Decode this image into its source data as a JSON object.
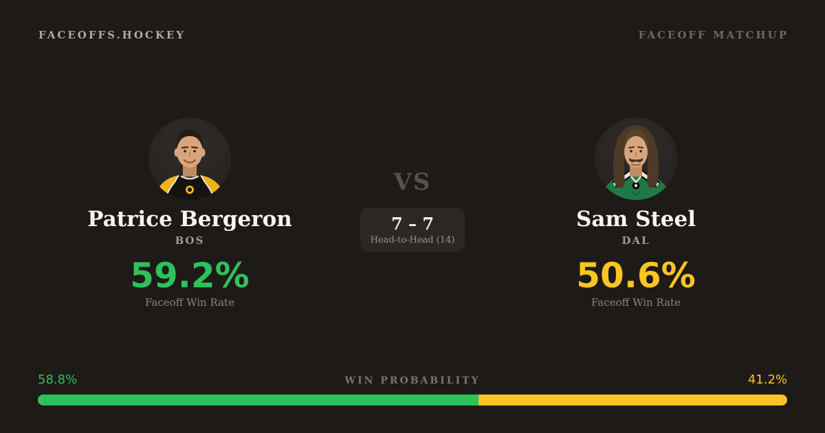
{
  "header": {
    "brand": "FACEOFFS.HOCKEY",
    "page_label": "FACEOFF MATCHUP"
  },
  "players": {
    "left": {
      "name": "Patrice Bergeron",
      "team": "BOS",
      "faceoff_win_rate": "59.2%",
      "stat_label": "Faceoff Win Rate",
      "accent_color": "#2ec15c",
      "avatar": "patrice-bergeron-headshot",
      "jersey_colors": [
        "#15130f",
        "#efb31c"
      ]
    },
    "right": {
      "name": "Sam Steel",
      "team": "DAL",
      "faceoff_win_rate": "50.6%",
      "stat_label": "Faceoff Win Rate",
      "accent_color": "#fcc425",
      "avatar": "sam-steel-headshot",
      "jersey_colors": [
        "#1e7b45",
        "#ece9e3"
      ]
    }
  },
  "center": {
    "vs_label": "VS",
    "head_to_head_score": "7 – 7",
    "head_to_head_label": "Head-to-Head (14)"
  },
  "win_probability": {
    "label": "WIN PROBABILITY",
    "left_pct_label": "58.8%",
    "right_pct_label": "41.2%",
    "left_value": 58.8,
    "right_value": 41.2,
    "left_color": "#2ec15c",
    "right_color": "#fcc425"
  },
  "theme": {
    "background": "#1e1a17",
    "card_box": "#2b2723",
    "text_primary": "#f8f5f1",
    "text_muted": "#8b847c"
  }
}
